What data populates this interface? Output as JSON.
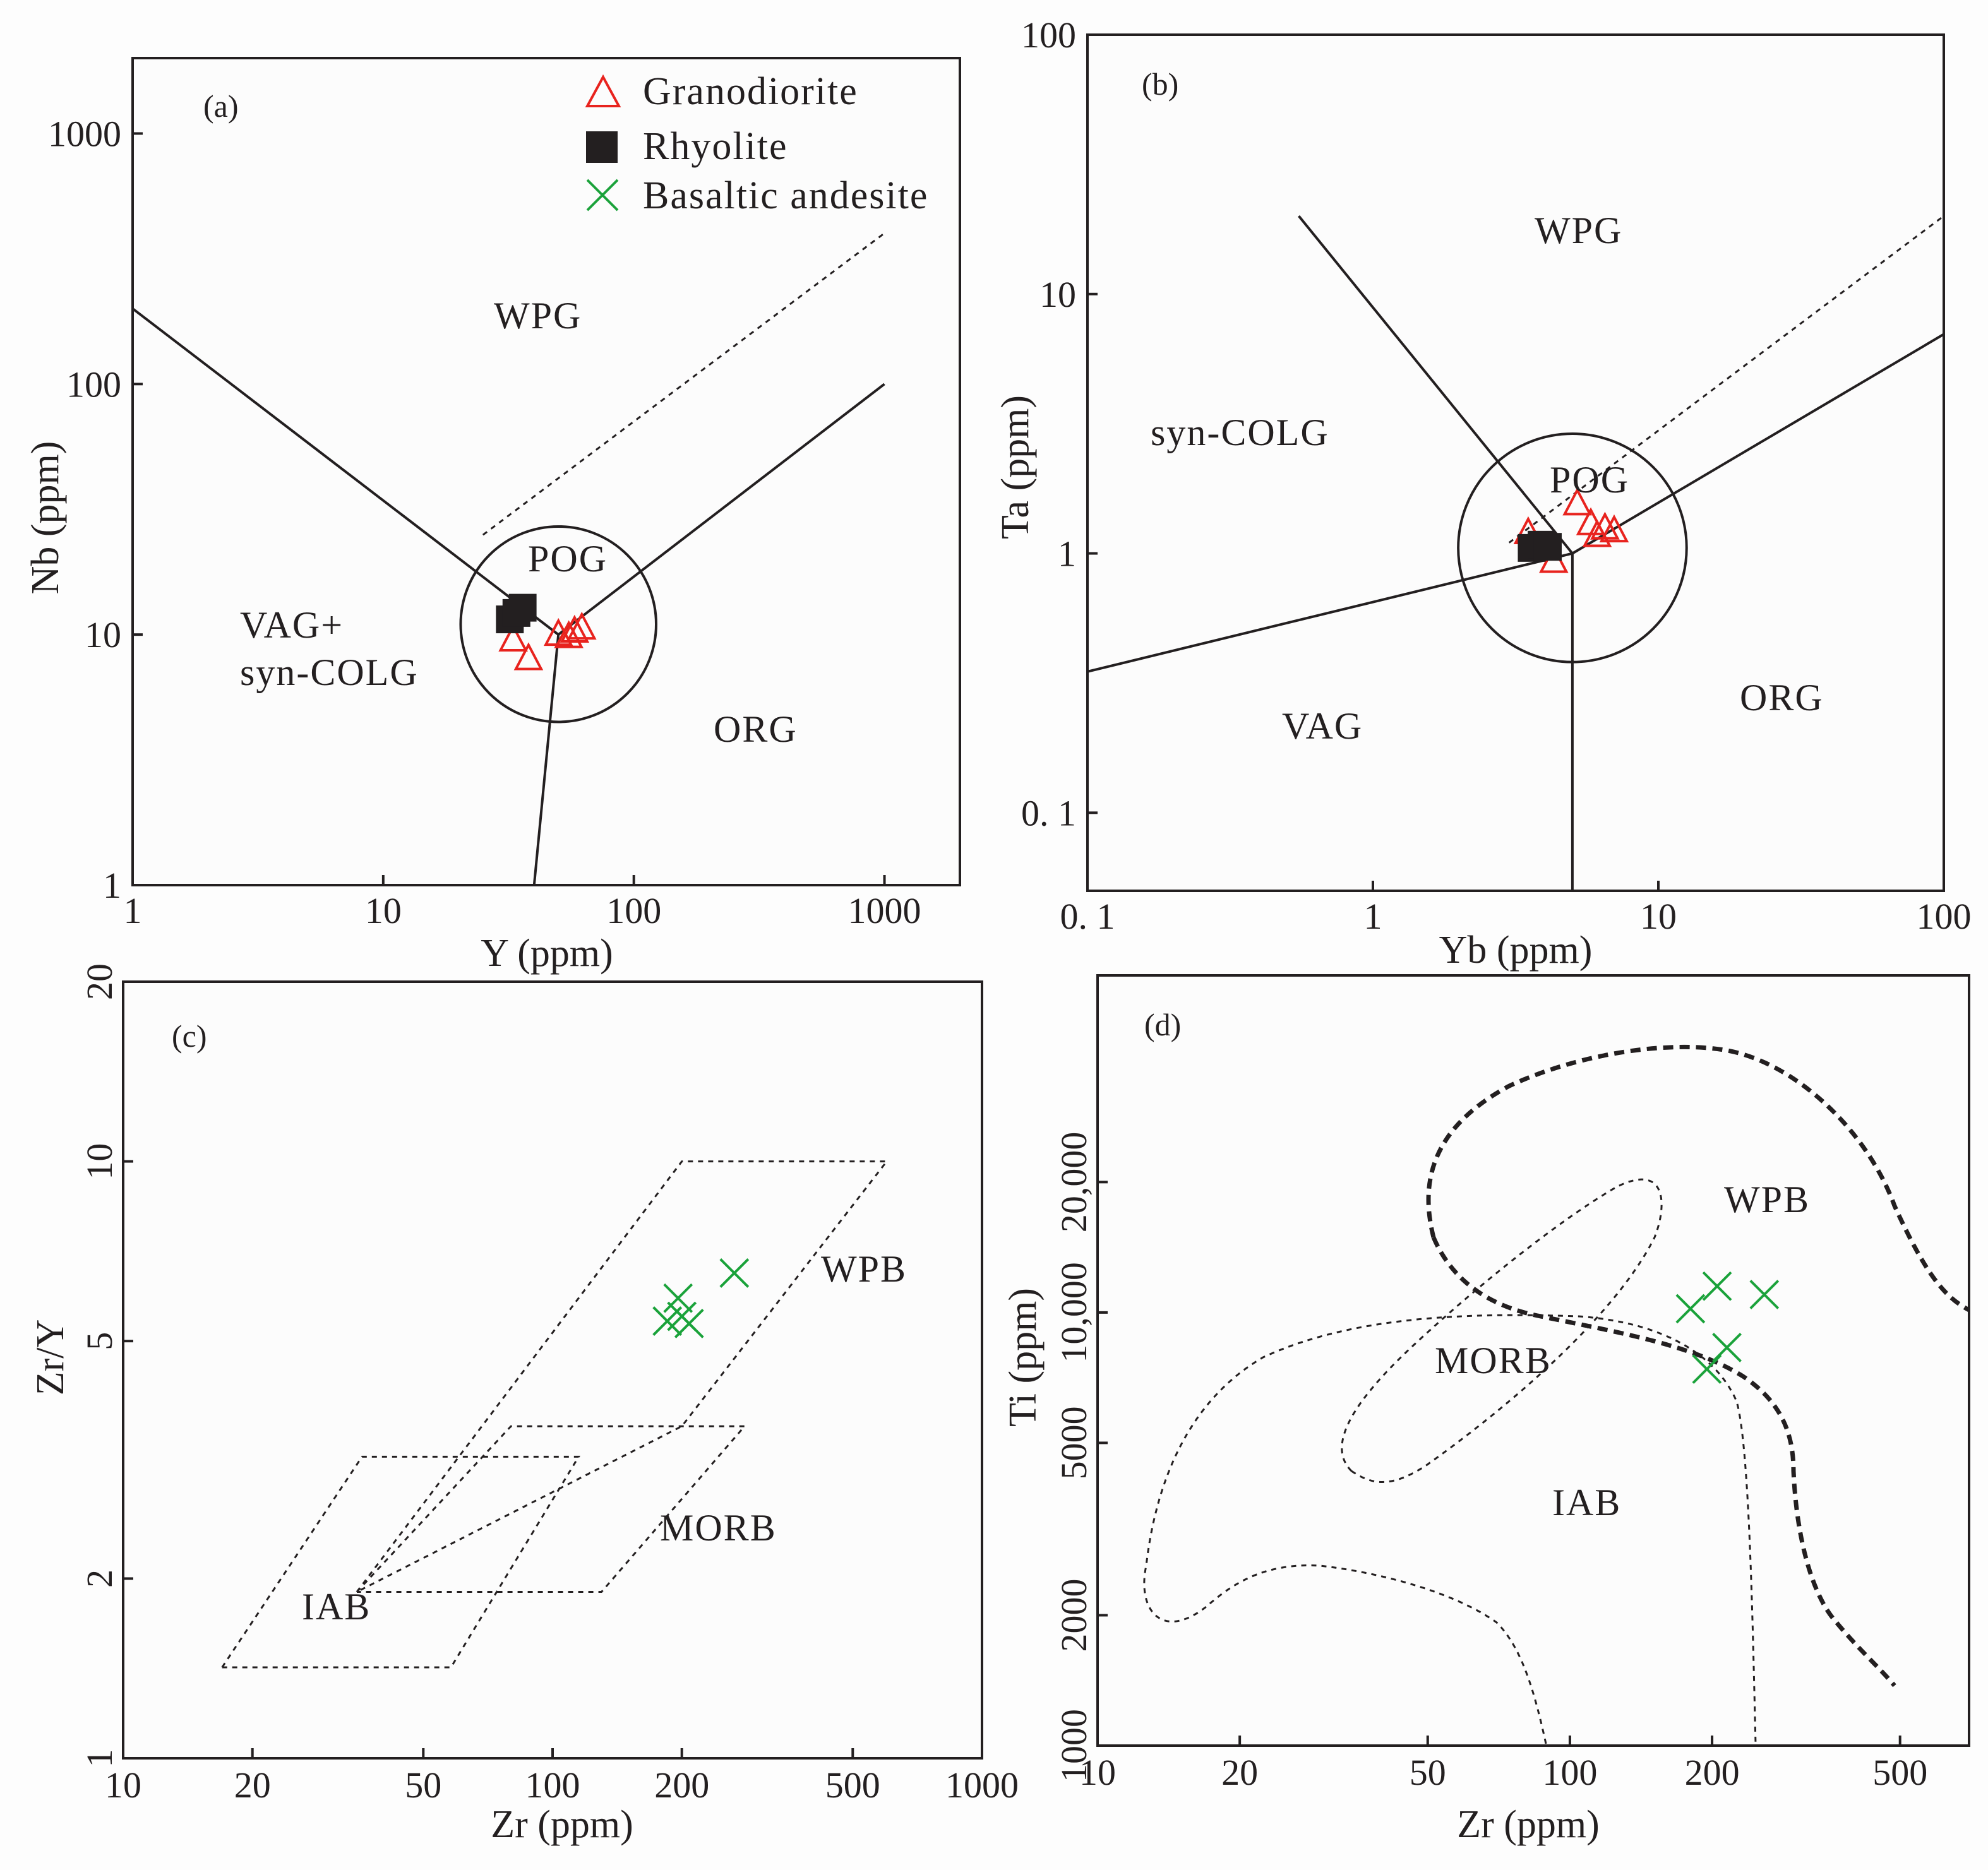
{
  "legend": {
    "granodiorite": "Granodiorite",
    "rhyolite": "Rhyolite",
    "basaltic_andesite": "Basaltic andesite"
  },
  "colors": {
    "granodiorite": "#e8231e",
    "rhyolite": "#231f20",
    "basaltic_andesite": "#1aa23a"
  },
  "chart_data": [
    {
      "panel": "(a)",
      "type": "scatter",
      "xscale": "log",
      "yscale": "log",
      "xlabel": "Y (ppm)",
      "ylabel": "Nb (ppm)",
      "xlim": [
        1,
        2000
      ],
      "ylim": [
        1,
        2000
      ],
      "xticks": [
        {
          "v": 1,
          "l": "1"
        },
        {
          "v": 10,
          "l": "10"
        },
        {
          "v": 100,
          "l": "100"
        },
        {
          "v": 1000,
          "l": "1000"
        }
      ],
      "yticks": [
        {
          "v": 1,
          "l": "1"
        },
        {
          "v": 10,
          "l": "10"
        },
        {
          "v": 100,
          "l": "100"
        },
        {
          "v": 1000,
          "l": "1000"
        }
      ],
      "fields": [
        "WPG",
        "POG",
        "VAG+",
        "syn-COLG",
        "ORG"
      ],
      "boundaries": [
        {
          "style": "solid",
          "points": [
            [
              1,
              200
            ],
            [
              50,
              10
            ],
            [
              1000,
              100
            ]
          ]
        },
        {
          "style": "solid",
          "points": [
            [
              50,
              10
            ],
            [
              40,
              1
            ]
          ]
        },
        {
          "style": "dotted",
          "points": [
            [
              25,
              25
            ],
            [
              1000,
              400
            ]
          ]
        }
      ],
      "circle": {
        "center": [
          50,
          11
        ],
        "radius_decades": 0.39
      },
      "series": [
        {
          "name": "Granodiorite",
          "marker": "triangle",
          "points": [
            [
              33,
              9.5
            ],
            [
              38,
              8.0
            ],
            [
              50,
              10.0
            ],
            [
              55,
              9.8
            ],
            [
              58,
              10.3
            ],
            [
              62,
              10.6
            ]
          ]
        },
        {
          "name": "Rhyolite",
          "marker": "square",
          "points": [
            [
              32,
              11.5
            ],
            [
              36,
              12.8
            ],
            [
              34,
              12.2
            ]
          ]
        }
      ]
    },
    {
      "panel": "(b)",
      "type": "scatter",
      "xscale": "log",
      "yscale": "log",
      "xlabel": "Yb (ppm)",
      "ylabel": "Ta (ppm)",
      "xlim": [
        0.1,
        100
      ],
      "ylim": [
        0.05,
        100
      ],
      "xticks": [
        {
          "v": 0.1,
          "l": "0. 1"
        },
        {
          "v": 1,
          "l": "1"
        },
        {
          "v": 10,
          "l": "10"
        },
        {
          "v": 100,
          "l": "100"
        }
      ],
      "yticks": [
        {
          "v": 0.1,
          "l": "0. 1"
        },
        {
          "v": 1,
          "l": "1"
        },
        {
          "v": 10,
          "l": "10"
        },
        {
          "v": 100,
          "l": "100"
        }
      ],
      "fields": [
        "WPG",
        "syn-COLG",
        "POG",
        "VAG",
        "ORG"
      ],
      "boundaries": [
        {
          "style": "solid",
          "points": [
            [
              0.1,
              0.35
            ],
            [
              5,
              1
            ]
          ]
        },
        {
          "style": "solid",
          "points": [
            [
              0.55,
              20
            ],
            [
              5,
              1
            ]
          ]
        },
        {
          "style": "solid",
          "points": [
            [
              5,
              1
            ],
            [
              100,
              7
            ]
          ]
        },
        {
          "style": "solid",
          "points": [
            [
              5,
              1
            ],
            [
              5,
              0.05
            ]
          ]
        },
        {
          "style": "dotted",
          "points": [
            [
              3,
              1.1
            ],
            [
              100,
              20
            ]
          ]
        }
      ],
      "circle": {
        "center": [
          5,
          1.05
        ],
        "radius_decades": 0.4
      },
      "series": [
        {
          "name": "Granodiorite",
          "marker": "triangle",
          "points": [
            [
              3.5,
              1.2
            ],
            [
              4.3,
              0.93
            ],
            [
              5.2,
              1.55
            ],
            [
              5.8,
              1.3
            ],
            [
              6.1,
              1.17
            ],
            [
              6.5,
              1.25
            ],
            [
              7.0,
              1.22
            ]
          ]
        },
        {
          "name": "Rhyolite",
          "marker": "square",
          "points": [
            [
              3.6,
              1.05
            ],
            [
              3.9,
              1.08
            ],
            [
              4.1,
              1.06
            ]
          ]
        }
      ]
    },
    {
      "panel": "(c)",
      "type": "scatter",
      "xscale": "log",
      "yscale": "log",
      "xlabel": "Zr (ppm)",
      "ylabel": "Zr/Y",
      "xlim": [
        10,
        1000
      ],
      "ylim": [
        1,
        20
      ],
      "xticks": [
        {
          "v": 10,
          "l": "10"
        },
        {
          "v": 20,
          "l": "20"
        },
        {
          "v": 50,
          "l": "50"
        },
        {
          "v": 100,
          "l": "100"
        },
        {
          "v": 200,
          "l": "200"
        },
        {
          "v": 500,
          "l": "500"
        },
        {
          "v": 1000,
          "l": "1000"
        }
      ],
      "yticks": [
        {
          "v": 1,
          "l": "1"
        },
        {
          "v": 2,
          "l": "2"
        },
        {
          "v": 5,
          "l": "5"
        },
        {
          "v": 10,
          "l": "10"
        },
        {
          "v": 20,
          "l": "20"
        }
      ],
      "fields": [
        "WPB",
        "MORB",
        "IAB"
      ],
      "boundaries": [
        {
          "style": "dotted",
          "label": "WPB",
          "points": [
            [
              35,
              1.9
            ],
            [
              200,
              10
            ],
            [
              600,
              10
            ],
            [
              200,
              3.6
            ],
            [
              35,
              1.9
            ]
          ]
        },
        {
          "style": "dotted",
          "label": "MORB",
          "points": [
            [
              35,
              1.9
            ],
            [
              80,
              3.6
            ],
            [
              280,
              3.6
            ],
            [
              130,
              1.9
            ],
            [
              35,
              1.9
            ]
          ]
        },
        {
          "style": "dotted",
          "label": "IAB",
          "points": [
            [
              17,
              1.42
            ],
            [
              36,
              3.2
            ],
            [
              115,
              3.2
            ],
            [
              58,
              1.42
            ],
            [
              17,
              1.42
            ]
          ]
        }
      ],
      "series": [
        {
          "name": "Basaltic andesite",
          "marker": "x",
          "points": [
            [
              265,
              6.5
            ],
            [
              196,
              5.9
            ],
            [
              185,
              5.4
            ],
            [
              200,
              5.5
            ],
            [
              208,
              5.35
            ]
          ]
        }
      ]
    },
    {
      "panel": "(d)",
      "type": "scatter",
      "xscale": "log",
      "yscale": "log",
      "xlabel": "Zr (ppm)",
      "ylabel": "Ti (ppm)",
      "xlim": [
        10,
        700
      ],
      "ylim": [
        1000,
        60000
      ],
      "xticks": [
        {
          "v": 10,
          "l": "10"
        },
        {
          "v": 20,
          "l": "20"
        },
        {
          "v": 50,
          "l": "50"
        },
        {
          "v": 100,
          "l": "100"
        },
        {
          "v": 200,
          "l": "200"
        },
        {
          "v": 500,
          "l": "500"
        }
      ],
      "yticks": [
        {
          "v": 1000,
          "l": "1000"
        },
        {
          "v": 2000,
          "l": "2000"
        },
        {
          "v": 5000,
          "l": "5000"
        },
        {
          "v": 10000,
          "l": "10,000"
        },
        {
          "v": 20000,
          "l": "20,000"
        }
      ],
      "fields": [
        "WPB",
        "MORB",
        "IAB"
      ],
      "series": [
        {
          "name": "Basaltic andesite",
          "marker": "x",
          "points": [
            [
              205,
              11500
            ],
            [
              180,
              10200
            ],
            [
              258,
              11000
            ],
            [
              215,
              8300
            ],
            [
              195,
              7400
            ]
          ]
        }
      ]
    }
  ]
}
